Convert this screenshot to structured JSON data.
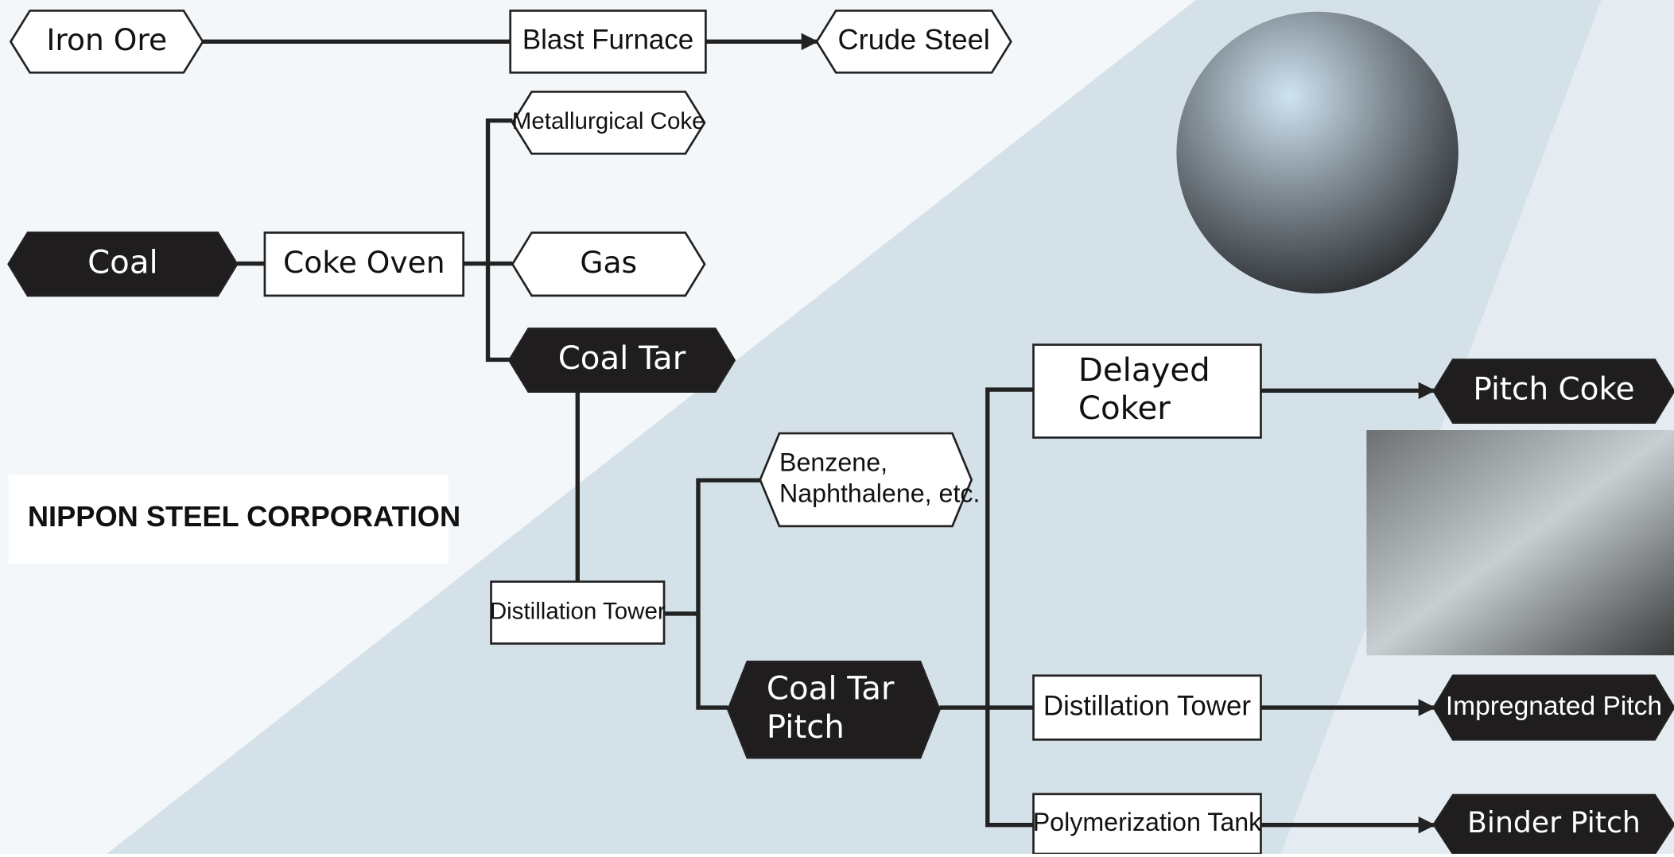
{
  "company": "NIPPON STEEL CORPORATION",
  "nodes": [
    {
      "lines": [
        "Iron Ore"
      ]
    },
    {
      "lines": [
        "Blast Furnace"
      ]
    },
    {
      "lines": [
        "Crude Steel"
      ]
    },
    {
      "lines": [
        "Metallurgical Coke"
      ]
    },
    {
      "lines": [
        "Coal"
      ]
    },
    {
      "lines": [
        "Coke Oven"
      ]
    },
    {
      "lines": [
        "Gas"
      ]
    },
    {
      "lines": [
        "Coal Tar"
      ]
    },
    {
      "lines": [
        "Distillation Tower"
      ]
    },
    {
      "lines": [
        "Benzene,",
        "Naphthalene, etc."
      ]
    },
    {
      "lines": [
        "Coal Tar",
        "Pitch"
      ]
    },
    {
      "lines": [
        "Delayed",
        "Coker"
      ]
    },
    {
      "lines": [
        "Distillation Tower"
      ]
    },
    {
      "lines": [
        "Polymerization Tank"
      ]
    },
    {
      "lines": [
        "Pitch Coke"
      ]
    },
    {
      "lines": [
        "Impregnated Pitch"
      ]
    },
    {
      "lines": [
        "Binder Pitch"
      ]
    }
  ]
}
